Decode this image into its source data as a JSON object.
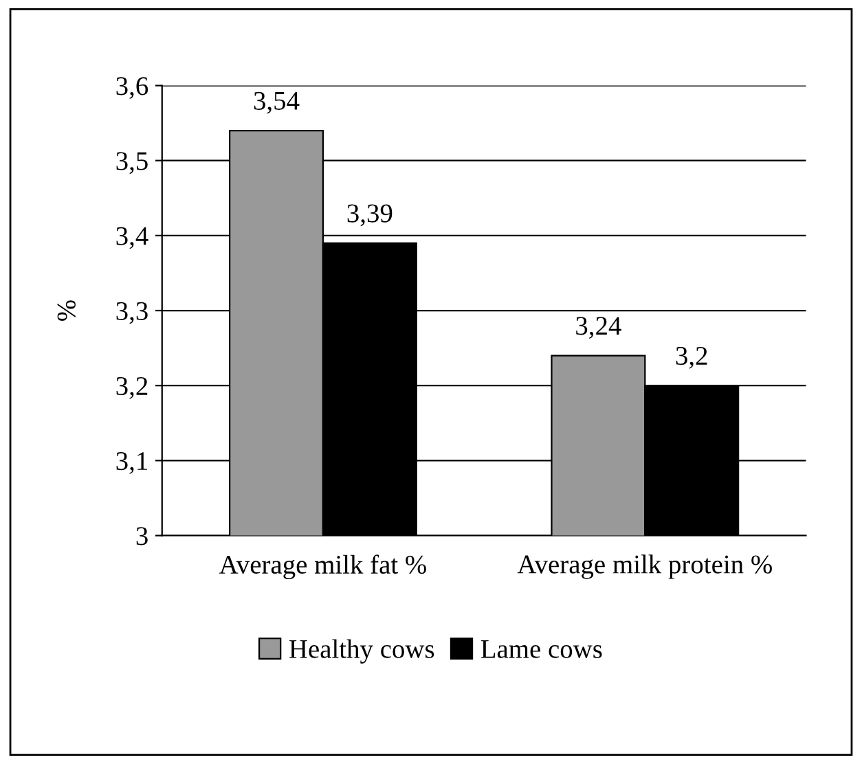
{
  "chart_data": {
    "type": "bar",
    "ylabel": "%",
    "categories": [
      "Average milk fat %",
      "Average milk protein %"
    ],
    "series": [
      {
        "name": "Healthy cows",
        "color": "#999999",
        "values": [
          3.54,
          3.24
        ],
        "value_labels": [
          "3,54",
          "3,24"
        ]
      },
      {
        "name": "Lame cows",
        "color": "#000000",
        "values": [
          3.39,
          3.2
        ],
        "value_labels": [
          "3,39",
          "3,2"
        ]
      }
    ],
    "ylim": [
      3,
      3.6
    ],
    "yticks": [
      {
        "value": 3,
        "label": "3"
      },
      {
        "value": 3.1,
        "label": "3,1"
      },
      {
        "value": 3.2,
        "label": "3,2"
      },
      {
        "value": 3.3,
        "label": "3,3"
      },
      {
        "value": 3.4,
        "label": "3,4"
      },
      {
        "value": 3.5,
        "label": "3,5"
      },
      {
        "value": 3.6,
        "label": "3,6"
      }
    ],
    "grid": "y",
    "legend": "bottom"
  }
}
